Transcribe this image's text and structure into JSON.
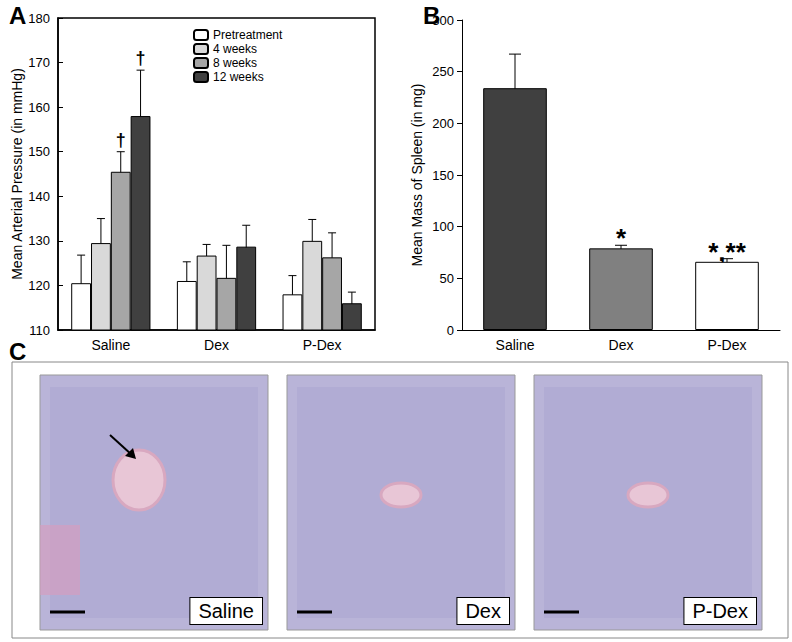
{
  "chart_data": [
    {
      "type": "bar",
      "title": "A",
      "categories": [
        "Saline",
        "Dex",
        "P-Dex"
      ],
      "series": [
        {
          "name": "Pretreatment",
          "color": "#ffffff",
          "values": [
            120.5,
            121,
            118
          ],
          "errors": [
            6.3,
            4.3,
            4.2
          ]
        },
        {
          "name": "4 weeks",
          "color": "#d9d9d9",
          "values": [
            129.5,
            126.7,
            130
          ],
          "errors": [
            5.5,
            2.5,
            4.8
          ]
        },
        {
          "name": "8 weeks",
          "color": "#a6a6a6",
          "values": [
            145.5,
            121.7,
            126.3
          ],
          "errors": [
            4.5,
            7.3,
            5.5
          ]
        },
        {
          "name": "12 weeks",
          "color": "#404040",
          "values": [
            158,
            128.7,
            116
          ],
          "errors": [
            10.3,
            4.8,
            2.5
          ]
        }
      ],
      "ylabel": "Mean Arterial Pressure (in mmHg)",
      "ylim": [
        110,
        180
      ],
      "yticks": [
        110,
        120,
        130,
        140,
        150,
        160,
        170,
        180
      ],
      "legend": "top-left",
      "annotations": [
        {
          "text": "†",
          "category": "Saline",
          "series": "8 weeks"
        },
        {
          "text": "†",
          "category": "Saline",
          "series": "12 weeks"
        }
      ]
    },
    {
      "type": "bar",
      "title": "B",
      "categories": [
        "Saline",
        "Dex",
        "P-Dex"
      ],
      "values": [
        234,
        79,
        66
      ],
      "errors": [
        33,
        3,
        3
      ],
      "colors": [
        "#404040",
        "#808080",
        "#ffffff"
      ],
      "ylabel": "Mean Mass of Spleen (in mg)",
      "ylim": [
        0,
        300
      ],
      "yticks": [
        0,
        50,
        100,
        150,
        200,
        250,
        300
      ],
      "annotations": [
        {
          "text": "*",
          "category": "Dex"
        },
        {
          "text": "*,**",
          "category": "P-Dex"
        }
      ]
    }
  ],
  "panel_c": {
    "title": "C",
    "images": [
      {
        "label": "Saline"
      },
      {
        "label": "Dex"
      },
      {
        "label": "P-Dex"
      }
    ]
  }
}
